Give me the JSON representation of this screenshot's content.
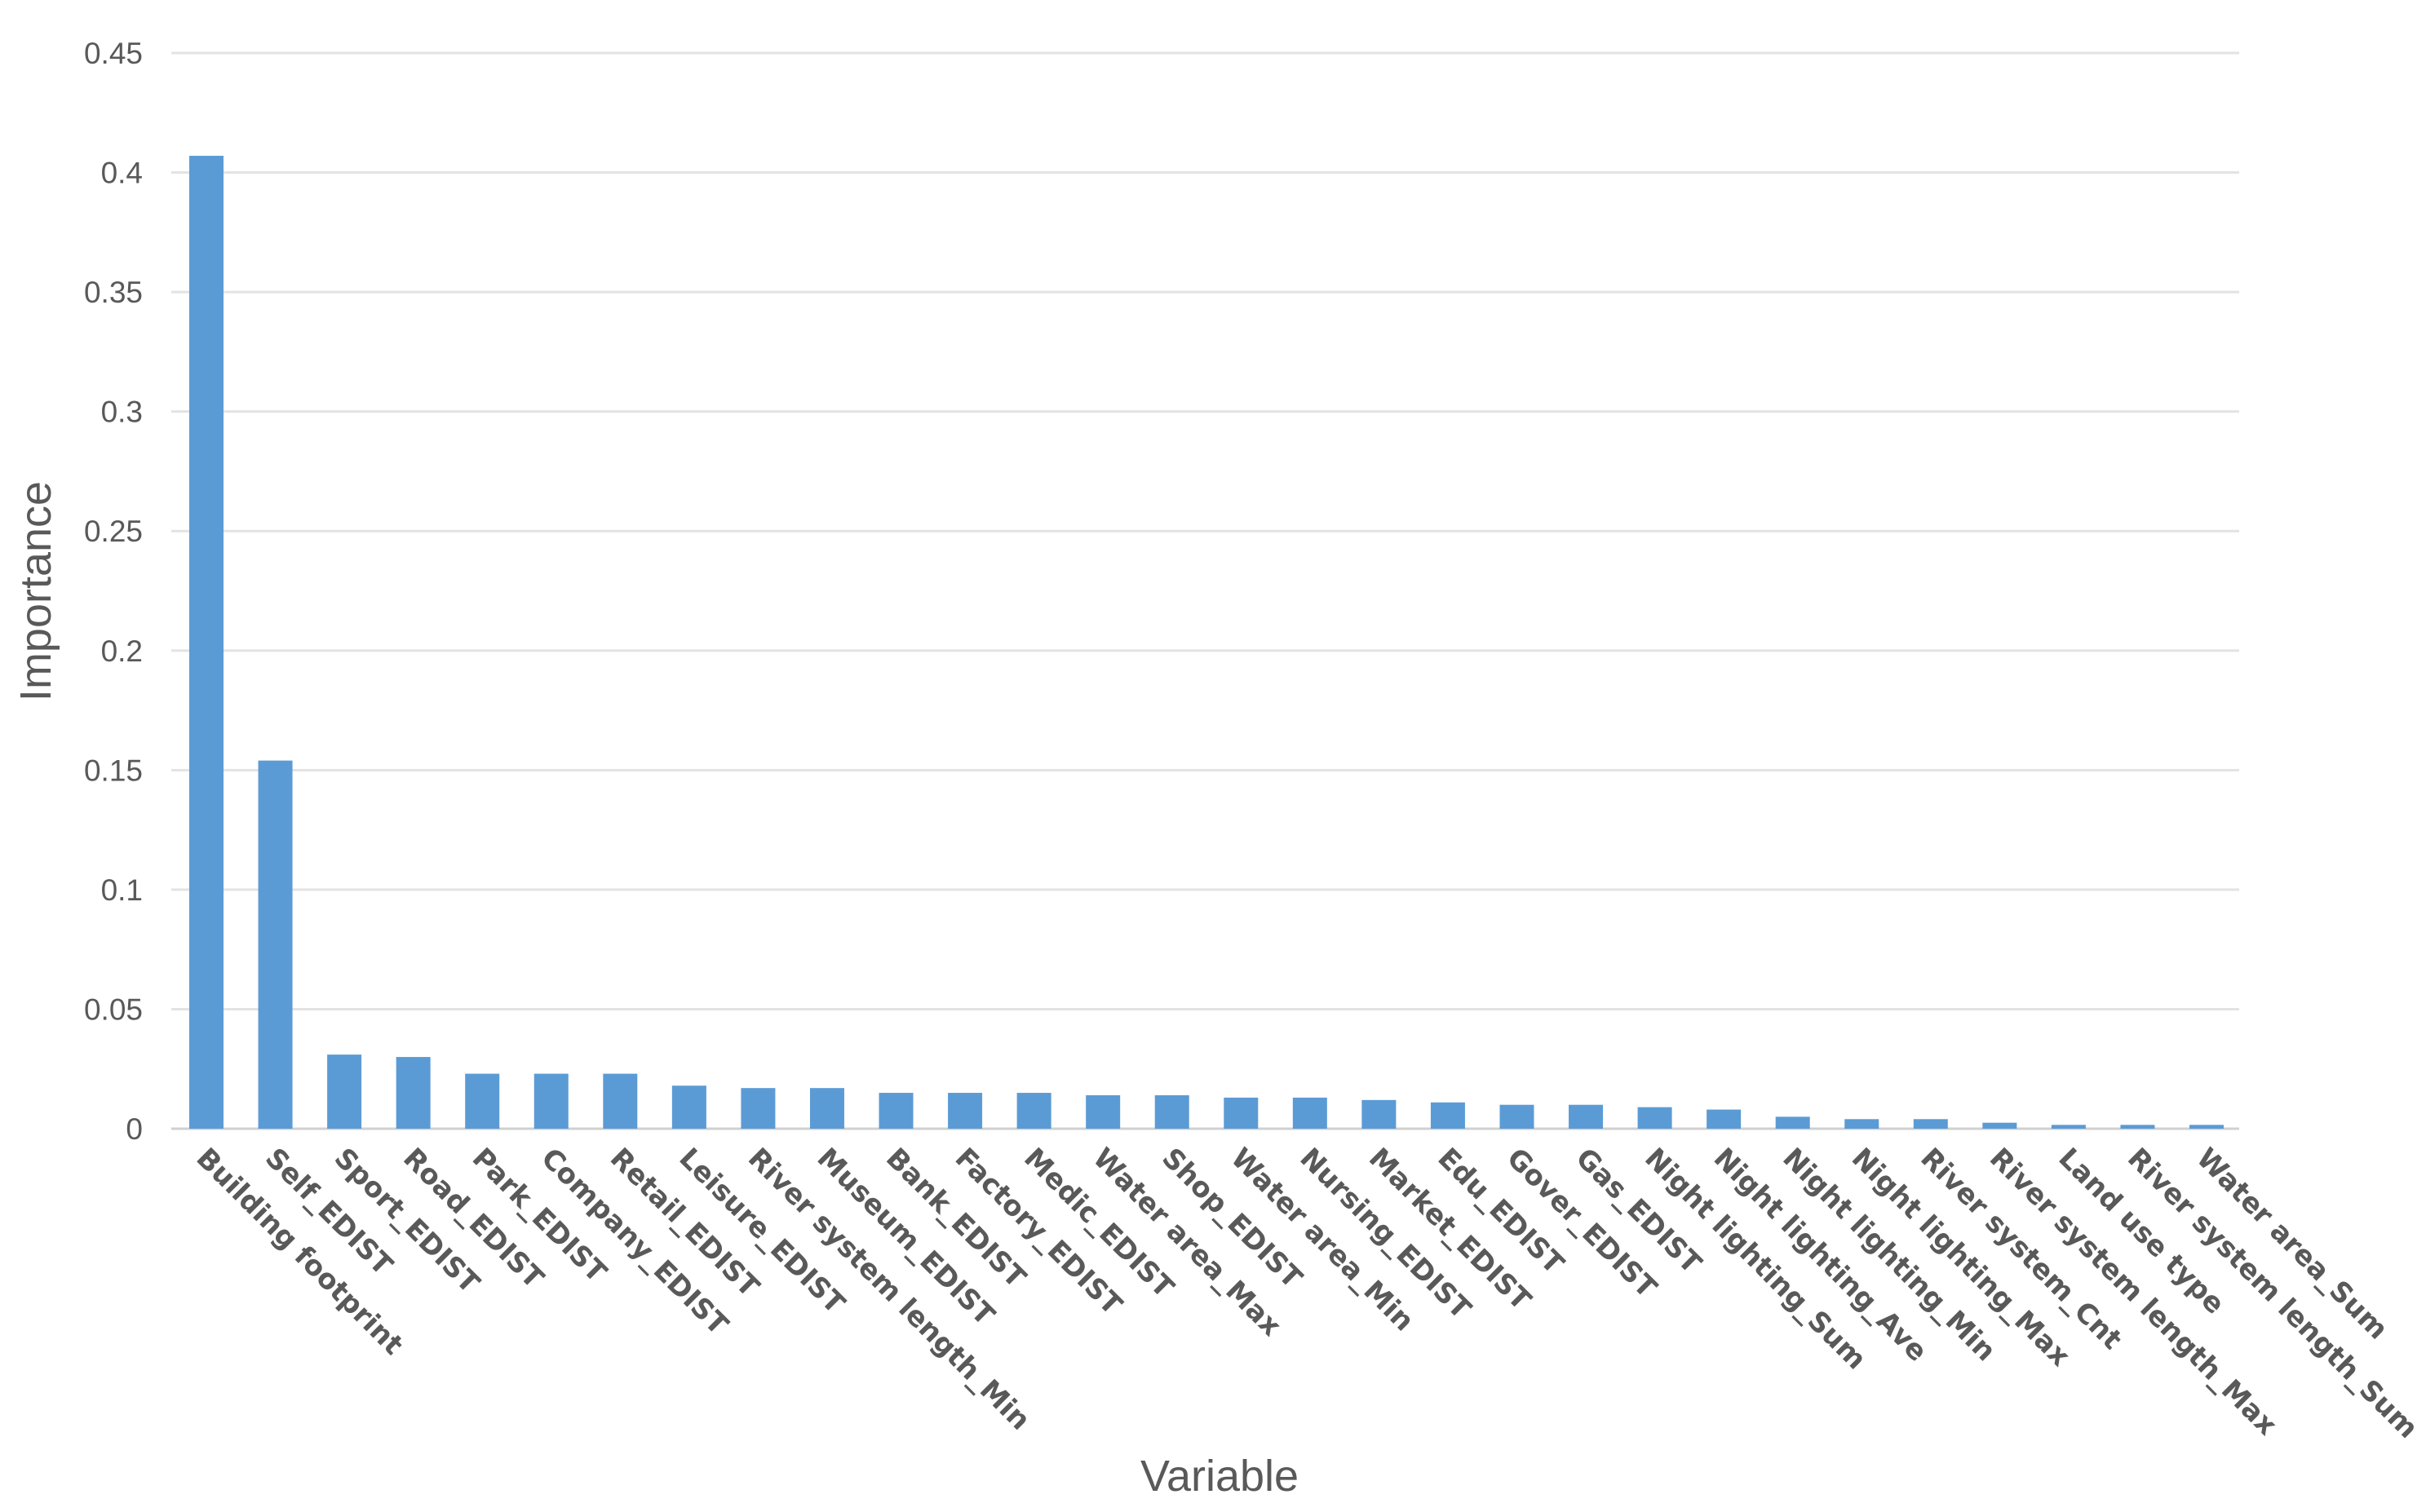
{
  "chart_data": {
    "type": "bar",
    "title": "",
    "xlabel": "Variable",
    "ylabel": "Importance",
    "ylim": [
      0,
      0.45
    ],
    "yticks": [
      "0",
      "0.05",
      "0.1",
      "0.15",
      "0.2",
      "0.25",
      "0.3",
      "0.35",
      "0.4",
      "0.45"
    ],
    "grid": true,
    "bar_color": "#5B9BD5",
    "categories": [
      "Building footprint",
      "Self_EDIST",
      "Sport_EDIST",
      "Road_EDIST",
      "Park_EDIST",
      "Company_EDIST",
      "Retail_EDIST",
      "Leisure_EDIST",
      "River system length_Min",
      "Museum_EDIST",
      "Bank_EDIST",
      "Factory_EDIST",
      "Medic_EDIST",
      "Water area_Max",
      "Shop_EDIST",
      "Water area_Min",
      "Nursing_EDIST",
      "Market_EDIST",
      "Edu_EDIST",
      "Gover_EDIST",
      "Gas_EDIST",
      "Night lighting_Sum",
      "Night lighting_Ave",
      "Night lighting_Min",
      "Night lighting_Max",
      "River system_Cnt",
      "River system length_Max",
      "Land use type",
      "River system length_Sum",
      "Water area_Sum"
    ],
    "values": [
      0.407,
      0.154,
      0.031,
      0.03,
      0.023,
      0.023,
      0.023,
      0.018,
      0.017,
      0.017,
      0.015,
      0.015,
      0.015,
      0.014,
      0.014,
      0.013,
      0.013,
      0.012,
      0.011,
      0.01,
      0.01,
      0.009,
      0.008,
      0.005,
      0.004,
      0.004,
      0.0025,
      0.0016,
      0.0016,
      0.0016
    ]
  }
}
